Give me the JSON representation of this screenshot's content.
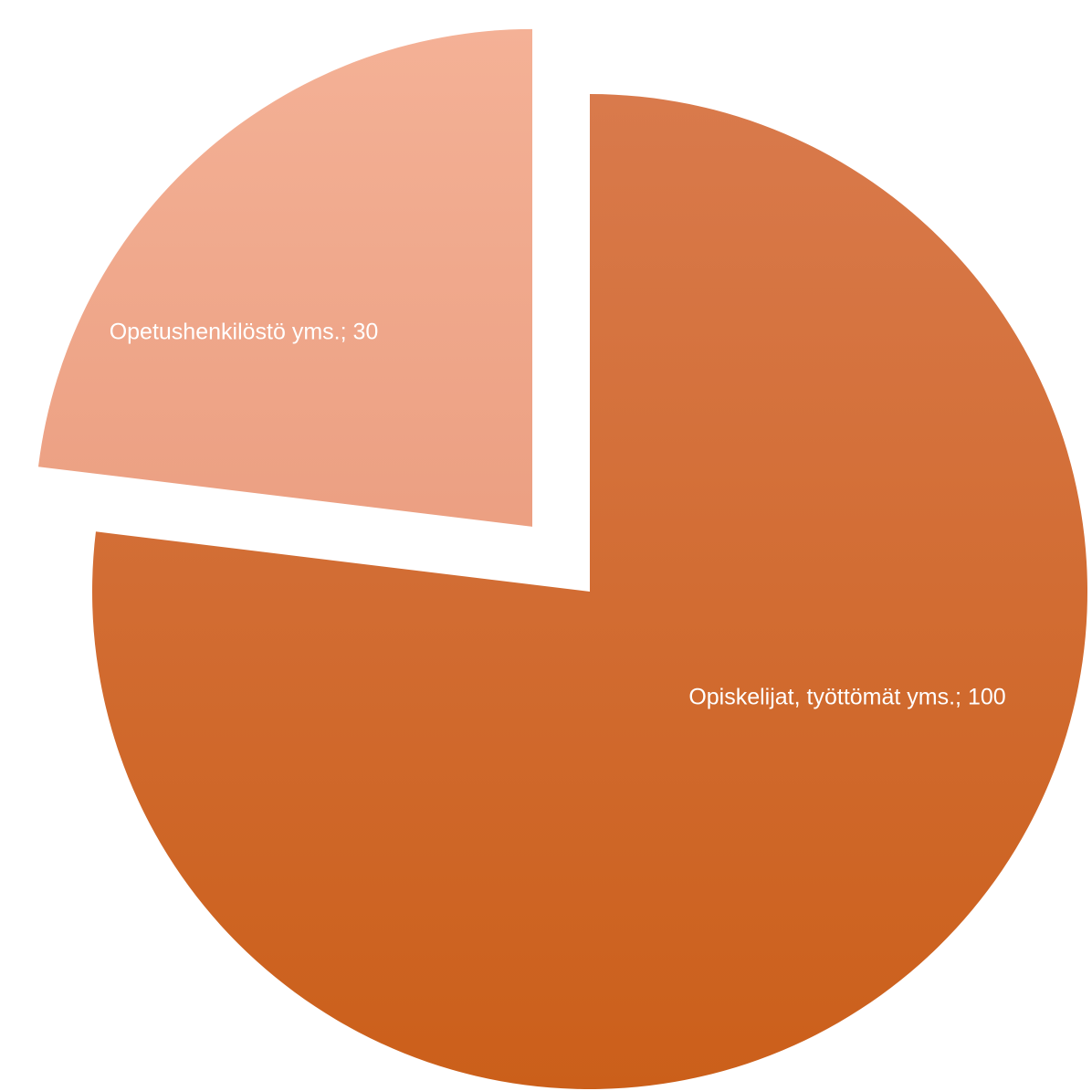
{
  "chart_data": {
    "type": "pie",
    "slices": [
      {
        "label": "Opiskelijat, työttömät yms.; 100",
        "category": "Opiskelijat, työttömät yms.",
        "value": 100,
        "color_top": "#D97A4C",
        "color_bottom": "#CB5F1A",
        "exploded": false
      },
      {
        "label": "Opetushenkilöstö yms.; 30",
        "category": "Opetushenkilöstö yms.",
        "value": 30,
        "color_top": "#F4B196",
        "color_bottom": "#E38E6E",
        "exploded": true
      }
    ],
    "start_angle": "12 o'clock",
    "direction": "clockwise",
    "legend": "none",
    "data_labels": "inside"
  }
}
